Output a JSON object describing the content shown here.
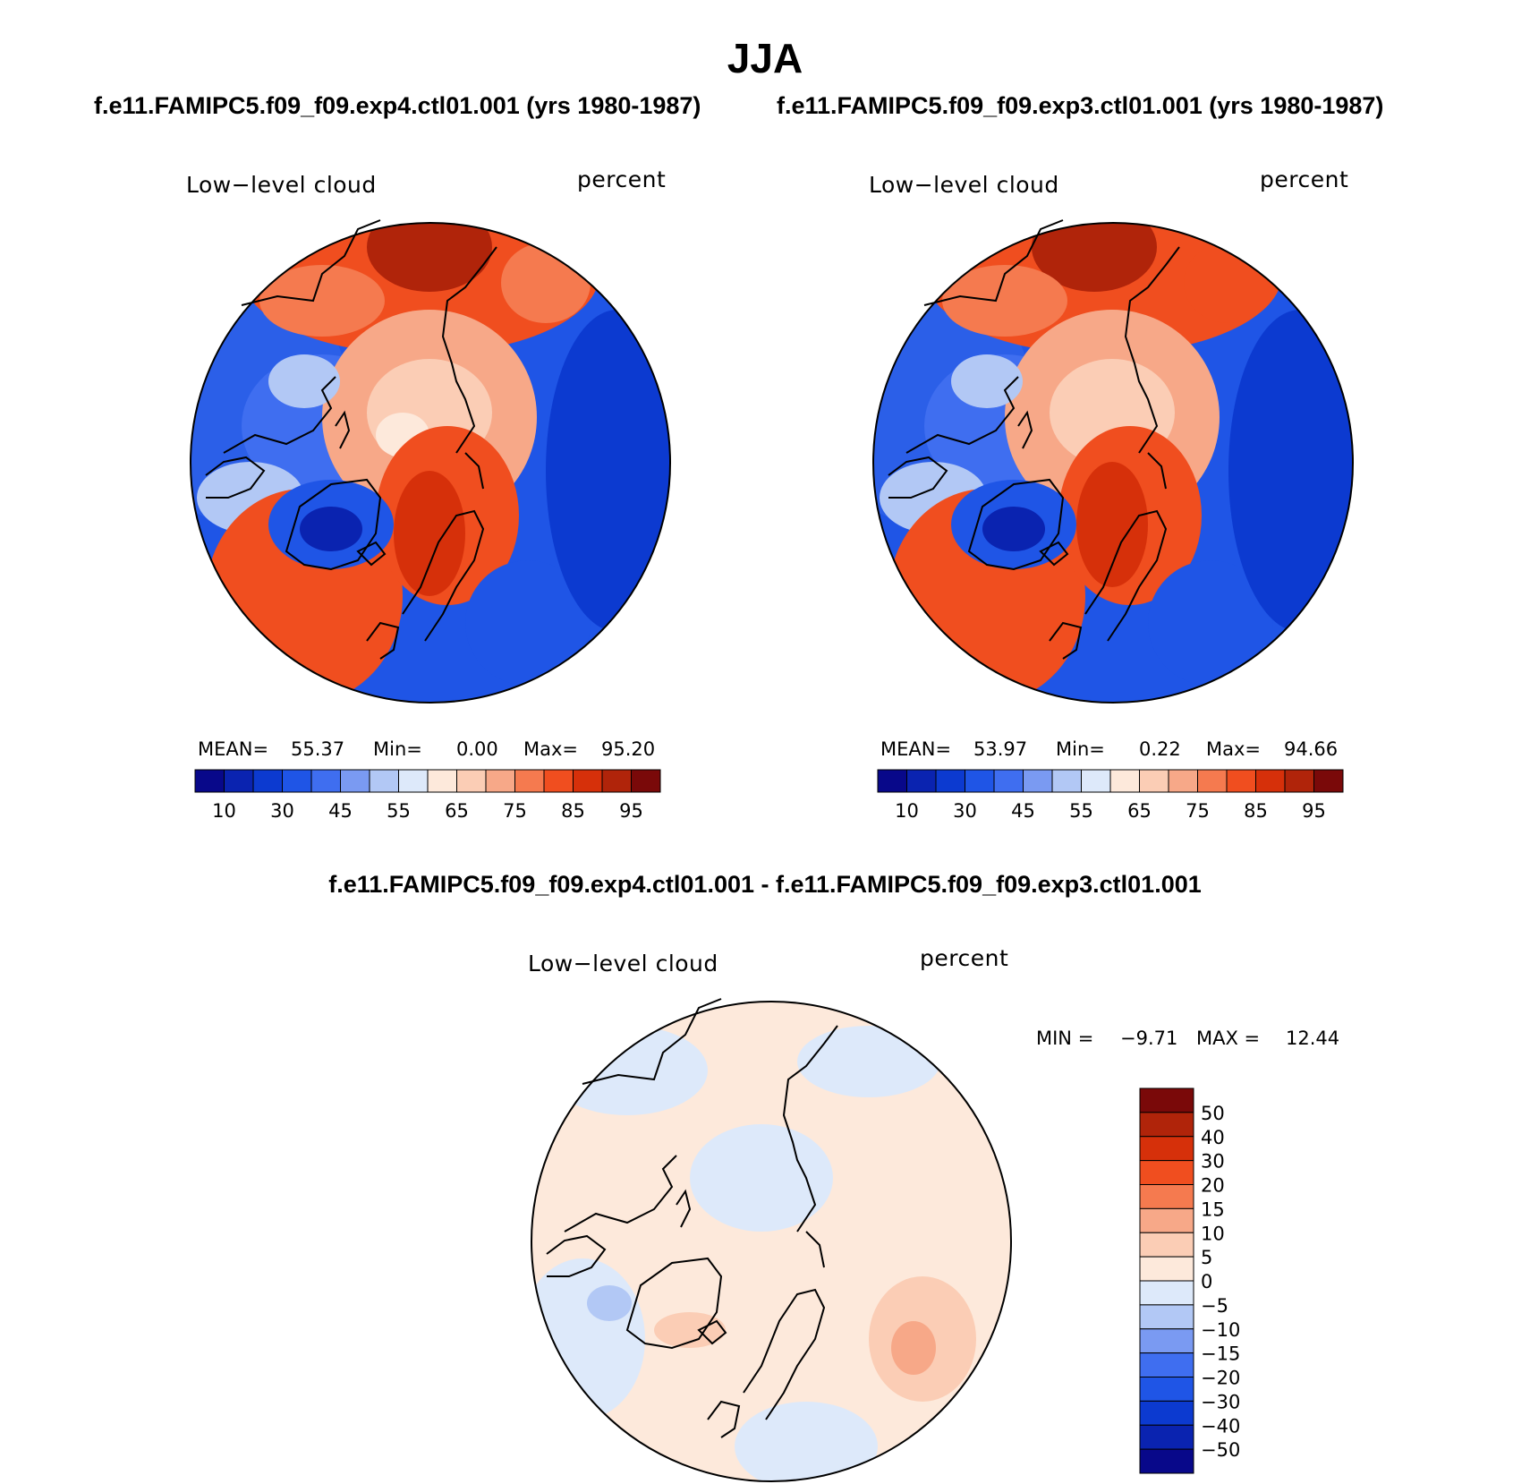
{
  "title": "JJA",
  "subtitle_left": "f.e11.FAMIPC5.f09_f09.exp4.ctl01.001 (yrs 1980-1987)",
  "subtitle_right": "f.e11.FAMIPC5.f09_f09.exp3.ctl01.001 (yrs 1980-1987)",
  "diff_title": "f.e11.FAMIPC5.f09_f09.exp4.ctl01.001 - f.e11.FAMIPC5.f09_f09.exp3.ctl01.001",
  "panels": [
    {
      "variable": "Low−level cloud",
      "units": "percent",
      "stats": {
        "mean_label": "MEAN=",
        "mean": "55.37",
        "min_label": "Min=",
        "min": "0.00",
        "max_label": "Max=",
        "max": "95.20"
      }
    },
    {
      "variable": "Low−level cloud",
      "units": "percent",
      "stats": {
        "mean_label": "MEAN=",
        "mean": "53.97",
        "min_label": "Min=",
        "min": "0.22",
        "max_label": "Max=",
        "max": "94.66"
      }
    },
    {
      "variable": "Low−level cloud",
      "units": "percent",
      "stats": {
        "min_label": "MIN =",
        "min": "−9.71",
        "max_label": "MAX =",
        "max": "12.44"
      }
    }
  ],
  "colors": {
    "abs_scale": [
      "#08088a",
      "#0a23b0",
      "#0c3ad0",
      "#1f55e6",
      "#3f6ef0",
      "#7a9af2",
      "#b2c8f5",
      "#dde9fa",
      "#fde9db",
      "#fbcdb5",
      "#f7a888",
      "#f57a4f",
      "#f04e1f",
      "#d6300a",
      "#b0240a",
      "#7a0909"
    ],
    "diff_scale": [
      "#08088a",
      "#0a23b0",
      "#0c3ad0",
      "#1f55e6",
      "#3f6ef0",
      "#7a9af2",
      "#b2c8f5",
      "#dde9fa",
      "#fde9db",
      "#fbcdb5",
      "#f7a888",
      "#f57a4f",
      "#f04e1f",
      "#d6300a",
      "#b0240a",
      "#7a0909"
    ]
  },
  "chart_data": [
    {
      "type": "heatmap",
      "title": "Low−level cloud",
      "units": "percent",
      "projection": "polar stereographic (north)",
      "season": "JJA",
      "case": "f.e11.FAMIPC5.f09_f09.exp4.ctl01.001",
      "mean": 55.37,
      "min": 0.0,
      "max": 95.2,
      "colorbar_levels": [
        5,
        10,
        20,
        30,
        40,
        45,
        50,
        55,
        60,
        65,
        70,
        75,
        80,
        85,
        90,
        95
      ],
      "colorbar_tick_labels": [
        "10",
        "30",
        "45",
        "55",
        "65",
        "75",
        "85",
        "95"
      ]
    },
    {
      "type": "heatmap",
      "title": "Low−level cloud",
      "units": "percent",
      "projection": "polar stereographic (north)",
      "season": "JJA",
      "case": "f.e11.FAMIPC5.f09_f09.exp3.ctl01.001",
      "mean": 53.97,
      "min": 0.22,
      "max": 94.66,
      "colorbar_levels": [
        5,
        10,
        20,
        30,
        40,
        45,
        50,
        55,
        60,
        65,
        70,
        75,
        80,
        85,
        90,
        95
      ],
      "colorbar_tick_labels": [
        "10",
        "30",
        "45",
        "55",
        "65",
        "75",
        "85",
        "95"
      ]
    },
    {
      "type": "heatmap",
      "title": "Low−level cloud",
      "units": "percent",
      "projection": "polar stereographic (north)",
      "season": "JJA",
      "case": "exp4 - exp3 difference",
      "min": -9.71,
      "max": 12.44,
      "colorbar_levels": [
        -50,
        -40,
        -30,
        -20,
        -15,
        -10,
        -5,
        0,
        5,
        10,
        15,
        20,
        30,
        40,
        50
      ],
      "colorbar_tick_labels": [
        "50",
        "40",
        "30",
        "20",
        "15",
        "10",
        "5",
        "0",
        "−5",
        "−10",
        "−15",
        "−20",
        "−30",
        "−40",
        "−50"
      ]
    }
  ]
}
